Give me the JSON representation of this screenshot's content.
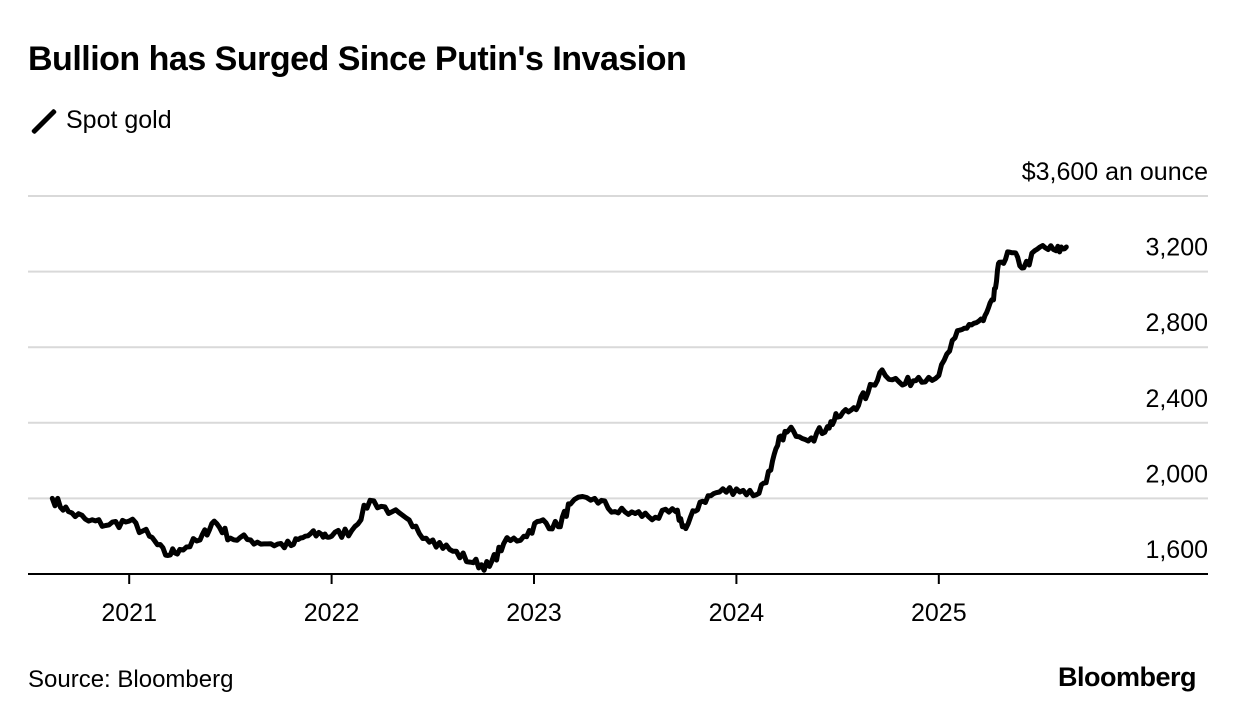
{
  "header": {
    "title": "Bullion has Surged Since Putin's Invasion",
    "legend_label": "Spot gold",
    "unit_label": "$3,600 an ounce"
  },
  "footer": {
    "source": "Source: Bloomberg",
    "brand": "Bloomberg"
  },
  "colors": {
    "line": "#000000",
    "grid": "#d9d9d9",
    "axis": "#000000"
  },
  "chart_data": {
    "type": "line",
    "title": "Bullion has Surged Since Putin's Invasion",
    "series": [
      {
        "name": "Spot gold",
        "x": [
          2020.62,
          2020.7,
          2020.8,
          2020.9,
          2021.0,
          2021.1,
          2021.18,
          2021.25,
          2021.35,
          2021.42,
          2021.5,
          2021.6,
          2021.7,
          2021.8,
          2021.87,
          2021.95,
          2022.0,
          2022.1,
          2022.19,
          2022.3,
          2022.4,
          2022.5,
          2022.6,
          2022.7,
          2022.78,
          2022.85,
          2022.95,
          2023.03,
          2023.12,
          2023.18,
          2023.3,
          2023.4,
          2023.5,
          2023.6,
          2023.7,
          2023.75,
          2023.82,
          2023.9,
          2024.0,
          2024.1,
          2024.17,
          2024.22,
          2024.28,
          2024.37,
          2024.45,
          2024.5,
          2024.58,
          2024.65,
          2024.72,
          2024.82,
          2024.9,
          2025.0,
          2025.08,
          2025.15,
          2025.22,
          2025.27,
          2025.3,
          2025.36,
          2025.42,
          2025.5,
          2025.58,
          2025.63
        ],
        "values": [
          2000,
          1930,
          1880,
          1860,
          1880,
          1800,
          1700,
          1730,
          1780,
          1880,
          1790,
          1780,
          1760,
          1750,
          1800,
          1810,
          1800,
          1830,
          1990,
          1930,
          1850,
          1780,
          1720,
          1660,
          1640,
          1760,
          1800,
          1880,
          1850,
          1970,
          2000,
          1930,
          1920,
          1900,
          1930,
          1840,
          1980,
          2030,
          2050,
          2020,
          2150,
          2330,
          2360,
          2320,
          2380,
          2430,
          2480,
          2560,
          2680,
          2600,
          2640,
          2650,
          2850,
          2920,
          2940,
          3050,
          3250,
          3300,
          3220,
          3330,
          3310,
          3330
        ]
      }
    ],
    "x_ticks": [
      2021,
      2022,
      2023,
      2024,
      2025
    ],
    "x_tick_labels": [
      "2021",
      "2022",
      "2023",
      "2024",
      "2025"
    ],
    "xlim": [
      2020.5,
      2026.33
    ],
    "y_ticks": [
      1600,
      2000,
      2400,
      2800,
      3200,
      3600
    ],
    "y_tick_labels": [
      "1,600",
      "2,000",
      "2,400",
      "2,800",
      "3,200",
      "$3,600 an ounce"
    ],
    "ylim": [
      1600,
      3600
    ],
    "xlabel": "",
    "ylabel": "$ an ounce",
    "grid": true,
    "legend": "top-left"
  }
}
